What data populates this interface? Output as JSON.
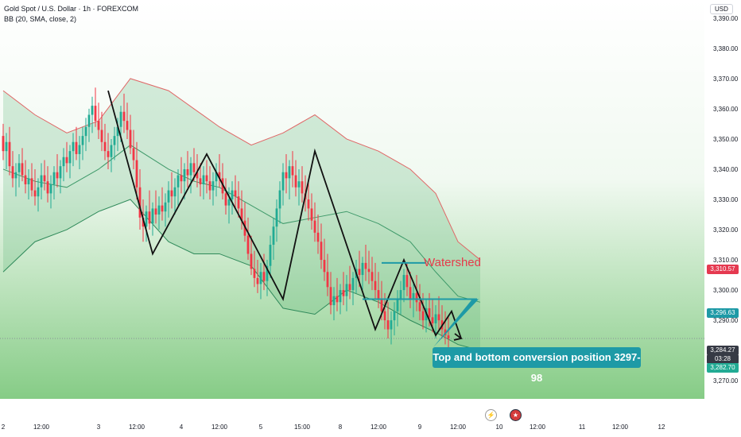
{
  "header": {
    "symbol_line": "Gold Spot / U.S. Dollar · 1h · FOREXCOM",
    "indicator_line": "BB (20, SMA, close, 2)"
  },
  "currency": "USD",
  "annotations": {
    "watershed": "Watershed",
    "callout": "Top and bottom conversion position 3297-98"
  },
  "price_tags": [
    {
      "value": "3,310.57",
      "color": "#e53950"
    },
    {
      "value": "3,296.63",
      "color": "#1e9aa6"
    },
    {
      "value": "3,284.27",
      "color": "#363a45"
    },
    {
      "value": "03:28",
      "color": "#363a45"
    },
    {
      "value": "3,282.70",
      "color": "#22ab94"
    }
  ],
  "events": [
    {
      "icon": "lightning-icon",
      "glyph": "⚡"
    },
    {
      "icon": "us-flag-icon",
      "glyph": "★"
    }
  ],
  "colors": {
    "up": "#22ab94",
    "down": "#f23645",
    "bb_upper": "#e06666",
    "bb_mid": "#3f9a6a",
    "bb_lower": "#2f8a5a",
    "bb_fill": "rgba(92,180,120,0.25)",
    "zigzag": "#111111",
    "level_line": "#1e9aa6"
  },
  "chart_data": {
    "type": "candlestick",
    "y_ticks": [
      3270,
      3280,
      3290,
      3300,
      3310,
      3320,
      3330,
      3340,
      3350,
      3360,
      3370,
      3380,
      3390
    ],
    "y_tick_labels": [
      "3,270.00",
      "3,280.00",
      "3,290.00",
      "3,300.00",
      "3,310.00",
      "3,320.00",
      "3,330.00",
      "3,340.00",
      "3,350.00",
      "3,360.00",
      "3,370.00",
      "3,380.00",
      "3,390.00"
    ],
    "ylim": [
      3264,
      3396
    ],
    "x_labels": [
      "2",
      "12:00",
      "3",
      "12:00",
      "4",
      "12:00",
      "5",
      "15:00",
      "8",
      "12:00",
      "9",
      "12:00",
      "10",
      "12:00",
      "11",
      "12:00",
      "12"
    ],
    "bars_total": 210,
    "x_label_bars": [
      0,
      12,
      30,
      42,
      56,
      68,
      81,
      94,
      106,
      118,
      131,
      143,
      156,
      168,
      182,
      194,
      207
    ],
    "ohlc": [
      [
        3351,
        3355,
        3343,
        3346
      ],
      [
        3346,
        3352,
        3340,
        3349
      ],
      [
        3349,
        3354,
        3338,
        3341
      ],
      [
        3341,
        3346,
        3334,
        3337
      ],
      [
        3337,
        3342,
        3331,
        3339
      ],
      [
        3339,
        3345,
        3334,
        3342
      ],
      [
        3342,
        3347,
        3336,
        3338
      ],
      [
        3338,
        3343,
        3332,
        3335
      ],
      [
        3335,
        3340,
        3330,
        3337
      ],
      [
        3337,
        3342,
        3331,
        3333
      ],
      [
        3333,
        3340,
        3328,
        3331
      ],
      [
        3331,
        3337,
        3326,
        3334
      ],
      [
        3334,
        3342,
        3330,
        3338
      ],
      [
        3338,
        3343,
        3333,
        3336
      ],
      [
        3336,
        3341,
        3329,
        3332
      ],
      [
        3332,
        3338,
        3327,
        3335
      ],
      [
        3335,
        3341,
        3330,
        3339
      ],
      [
        3339,
        3345,
        3334,
        3337
      ],
      [
        3337,
        3343,
        3332,
        3341
      ],
      [
        3341,
        3347,
        3336,
        3344
      ],
      [
        3344,
        3349,
        3339,
        3342
      ],
      [
        3342,
        3348,
        3337,
        3346
      ],
      [
        3346,
        3352,
        3341,
        3349
      ],
      [
        3349,
        3354,
        3343,
        3345
      ],
      [
        3345,
        3351,
        3340,
        3348
      ],
      [
        3348,
        3354,
        3343,
        3351
      ],
      [
        3351,
        3357,
        3346,
        3354
      ],
      [
        3354,
        3360,
        3349,
        3358
      ],
      [
        3358,
        3364,
        3352,
        3361
      ],
      [
        3361,
        3367,
        3354,
        3356
      ],
      [
        3356,
        3362,
        3350,
        3353
      ],
      [
        3353,
        3359,
        3346,
        3349
      ],
      [
        3349,
        3355,
        3343,
        3346
      ],
      [
        3346,
        3352,
        3340,
        3344
      ],
      [
        3344,
        3350,
        3339,
        3348
      ],
      [
        3348,
        3354,
        3343,
        3351
      ],
      [
        3351,
        3357,
        3346,
        3354
      ],
      [
        3354,
        3361,
        3349,
        3359
      ],
      [
        3359,
        3365,
        3352,
        3356
      ],
      [
        3356,
        3362,
        3350,
        3353
      ],
      [
        3353,
        3358,
        3345,
        3347
      ],
      [
        3347,
        3353,
        3340,
        3343
      ],
      [
        3343,
        3349,
        3330,
        3334
      ],
      [
        3334,
        3340,
        3320,
        3324
      ],
      [
        3324,
        3330,
        3316,
        3321
      ],
      [
        3321,
        3328,
        3316,
        3326
      ],
      [
        3326,
        3333,
        3320,
        3322
      ],
      [
        3322,
        3329,
        3318,
        3327
      ],
      [
        3327,
        3333,
        3322,
        3325
      ],
      [
        3325,
        3331,
        3320,
        3328
      ],
      [
        3328,
        3334,
        3323,
        3326
      ],
      [
        3326,
        3332,
        3321,
        3329
      ],
      [
        3329,
        3336,
        3324,
        3333
      ],
      [
        3333,
        3339,
        3327,
        3331
      ],
      [
        3331,
        3337,
        3325,
        3334
      ],
      [
        3334,
        3340,
        3328,
        3338
      ],
      [
        3338,
        3344,
        3332,
        3336
      ],
      [
        3336,
        3342,
        3330,
        3340
      ],
      [
        3340,
        3346,
        3334,
        3338
      ],
      [
        3338,
        3344,
        3332,
        3342
      ],
      [
        3342,
        3347,
        3336,
        3339
      ],
      [
        3339,
        3345,
        3334,
        3337
      ],
      [
        3337,
        3342,
        3331,
        3335
      ],
      [
        3335,
        3341,
        3330,
        3338
      ],
      [
        3338,
        3343,
        3332,
        3336
      ],
      [
        3336,
        3341,
        3330,
        3333
      ],
      [
        3333,
        3339,
        3328,
        3336
      ],
      [
        3336,
        3342,
        3331,
        3339
      ],
      [
        3339,
        3345,
        3334,
        3337
      ],
      [
        3337,
        3342,
        3330,
        3332
      ],
      [
        3332,
        3337,
        3325,
        3328
      ],
      [
        3328,
        3334,
        3322,
        3330
      ],
      [
        3330,
        3336,
        3325,
        3333
      ],
      [
        3333,
        3338,
        3327,
        3331
      ],
      [
        3331,
        3336,
        3324,
        3327
      ],
      [
        3327,
        3333,
        3320,
        3323
      ],
      [
        3323,
        3329,
        3316,
        3318
      ],
      [
        3318,
        3324,
        3310,
        3312
      ],
      [
        3312,
        3318,
        3305,
        3307
      ],
      [
        3307,
        3313,
        3301,
        3304
      ],
      [
        3304,
        3310,
        3299,
        3302
      ],
      [
        3302,
        3309,
        3297,
        3306
      ],
      [
        3306,
        3312,
        3300,
        3303
      ],
      [
        3303,
        3310,
        3298,
        3308
      ],
      [
        3308,
        3318,
        3304,
        3315
      ],
      [
        3315,
        3324,
        3310,
        3321
      ],
      [
        3321,
        3330,
        3316,
        3327
      ],
      [
        3327,
        3336,
        3322,
        3333
      ],
      [
        3333,
        3342,
        3328,
        3339
      ],
      [
        3339,
        3345,
        3332,
        3337
      ],
      [
        3337,
        3343,
        3330,
        3341
      ],
      [
        3341,
        3346,
        3334,
        3338
      ],
      [
        3338,
        3343,
        3331,
        3334
      ],
      [
        3334,
        3340,
        3328,
        3336
      ],
      [
        3336,
        3341,
        3329,
        3332
      ],
      [
        3332,
        3338,
        3326,
        3330
      ],
      [
        3330,
        3336,
        3323,
        3327
      ],
      [
        3327,
        3332,
        3320,
        3323
      ],
      [
        3323,
        3329,
        3316,
        3319
      ],
      [
        3319,
        3325,
        3312,
        3316
      ],
      [
        3316,
        3322,
        3307,
        3310
      ],
      [
        3310,
        3317,
        3303,
        3306
      ],
      [
        3306,
        3312,
        3298,
        3301
      ],
      [
        3301,
        3306,
        3292,
        3295
      ],
      [
        3295,
        3301,
        3290,
        3298
      ],
      [
        3298,
        3304,
        3293,
        3296
      ],
      [
        3296,
        3302,
        3292,
        3300
      ],
      [
        3300,
        3306,
        3295,
        3298
      ],
      [
        3298,
        3305,
        3293,
        3302
      ],
      [
        3302,
        3308,
        3297,
        3300
      ],
      [
        3300,
        3306,
        3295,
        3304
      ],
      [
        3304,
        3310,
        3299,
        3307
      ],
      [
        3307,
        3313,
        3301,
        3305
      ],
      [
        3305,
        3311,
        3300,
        3309
      ],
      [
        3309,
        3315,
        3303,
        3307
      ],
      [
        3307,
        3313,
        3302,
        3306
      ],
      [
        3306,
        3311,
        3300,
        3303
      ],
      [
        3303,
        3309,
        3297,
        3300
      ],
      [
        3300,
        3306,
        3294,
        3297
      ],
      [
        3297,
        3303,
        3290,
        3293
      ],
      [
        3293,
        3299,
        3287,
        3290
      ],
      [
        3290,
        3296,
        3284,
        3287
      ],
      [
        3287,
        3293,
        3282,
        3290
      ],
      [
        3290,
        3296,
        3285,
        3293
      ],
      [
        3293,
        3300,
        3288,
        3297
      ],
      [
        3297,
        3303,
        3292,
        3300
      ],
      [
        3300,
        3307,
        3296,
        3305
      ],
      [
        3305,
        3309,
        3298,
        3301
      ],
      [
        3301,
        3306,
        3294,
        3297
      ],
      [
        3297,
        3303,
        3291,
        3299
      ],
      [
        3299,
        3305,
        3293,
        3296
      ],
      [
        3296,
        3302,
        3290,
        3293
      ],
      [
        3293,
        3299,
        3287,
        3290
      ],
      [
        3290,
        3297,
        3286,
        3294
      ],
      [
        3294,
        3299,
        3288,
        3291
      ],
      [
        3291,
        3297,
        3286,
        3289
      ],
      [
        3289,
        3295,
        3284,
        3292
      ],
      [
        3292,
        3298,
        3287,
        3290
      ],
      [
        3290,
        3295,
        3284,
        3287
      ],
      [
        3287,
        3293,
        3282,
        3285
      ],
      [
        3285,
        3291,
        3281,
        3284
      ]
    ],
    "bb_upper": [
      [
        0,
        3366
      ],
      [
        10,
        3358
      ],
      [
        20,
        3352
      ],
      [
        30,
        3356
      ],
      [
        40,
        3370
      ],
      [
        52,
        3366
      ],
      [
        60,
        3360
      ],
      [
        68,
        3354
      ],
      [
        78,
        3348
      ],
      [
        88,
        3352
      ],
      [
        98,
        3358
      ],
      [
        108,
        3350
      ],
      [
        118,
        3346
      ],
      [
        128,
        3340
      ],
      [
        136,
        3332
      ],
      [
        143,
        3316
      ],
      [
        150,
        3310
      ]
    ],
    "bb_mid": [
      [
        0,
        3340
      ],
      [
        10,
        3336
      ],
      [
        20,
        3334
      ],
      [
        30,
        3340
      ],
      [
        40,
        3348
      ],
      [
        52,
        3340
      ],
      [
        60,
        3336
      ],
      [
        68,
        3334
      ],
      [
        78,
        3328
      ],
      [
        88,
        3322
      ],
      [
        98,
        3324
      ],
      [
        108,
        3326
      ],
      [
        118,
        3322
      ],
      [
        128,
        3316
      ],
      [
        136,
        3306
      ],
      [
        143,
        3298
      ],
      [
        150,
        3296
      ]
    ],
    "bb_lower": [
      [
        0,
        3306
      ],
      [
        10,
        3316
      ],
      [
        20,
        3320
      ],
      [
        30,
        3326
      ],
      [
        40,
        3330
      ],
      [
        52,
        3316
      ],
      [
        60,
        3312
      ],
      [
        68,
        3312
      ],
      [
        78,
        3308
      ],
      [
        88,
        3294
      ],
      [
        98,
        3292
      ],
      [
        108,
        3300
      ],
      [
        118,
        3296
      ],
      [
        128,
        3290
      ],
      [
        136,
        3286
      ],
      [
        143,
        3282
      ],
      [
        150,
        3280
      ]
    ],
    "zigzag": [
      [
        33,
        3366
      ],
      [
        47,
        3312
      ],
      [
        64,
        3345
      ],
      [
        88,
        3297
      ],
      [
        98,
        3346
      ],
      [
        117,
        3287
      ],
      [
        126,
        3310
      ],
      [
        136,
        3285
      ],
      [
        141,
        3293
      ],
      [
        144,
        3284
      ]
    ],
    "levels": [
      {
        "name": "watershed",
        "value": 3309,
        "from_bar": 119,
        "to_bar": 133
      },
      {
        "name": "conversion",
        "value": 3297,
        "from_bar": 113,
        "to_bar": 149
      }
    ],
    "last_price_line": 3284
  }
}
